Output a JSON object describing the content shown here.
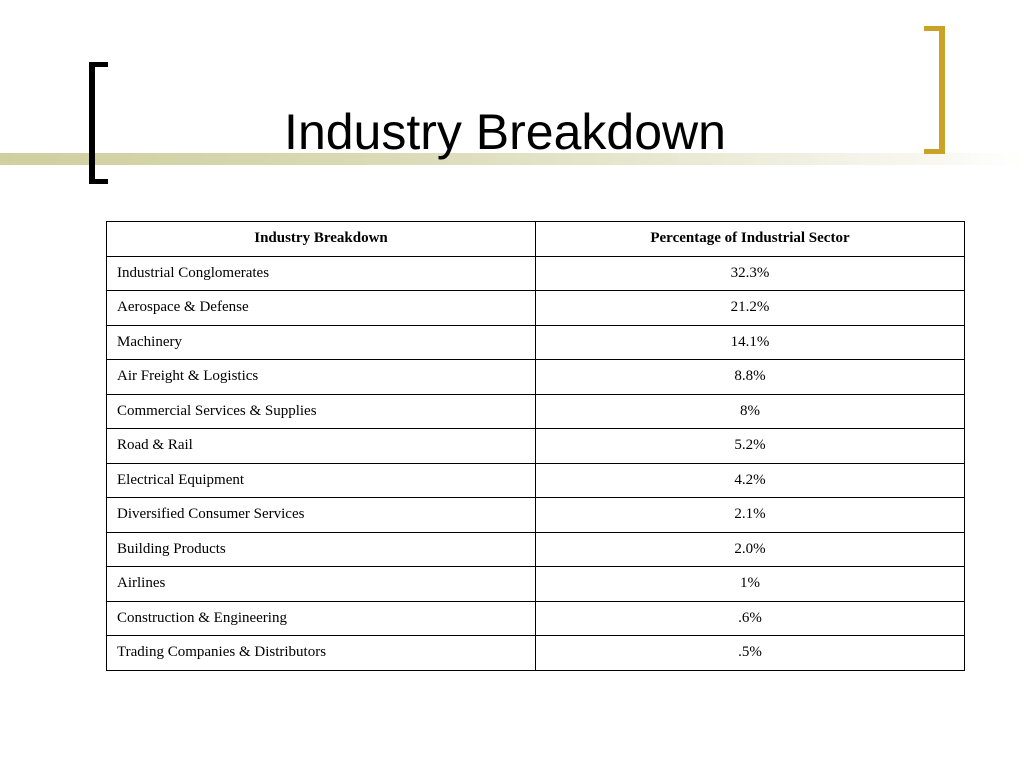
{
  "slide": {
    "title": "Industry Breakdown",
    "accent_colors": {
      "left_bracket": "#000000",
      "right_bracket": "#c9a227",
      "rule_gradient_start": "#cfcf9f"
    }
  },
  "table": {
    "headers": [
      "Industry Breakdown",
      "Percentage of Industrial Sector"
    ],
    "rows": [
      {
        "industry": "Industrial Conglomerates",
        "percentage": "32.3%"
      },
      {
        "industry": "Aerospace & Defense",
        "percentage": "21.2%"
      },
      {
        "industry": "Machinery",
        "percentage": "14.1%"
      },
      {
        "industry": "Air Freight & Logistics",
        "percentage": "8.8%"
      },
      {
        "industry": "Commercial Services & Supplies",
        "percentage": "8%"
      },
      {
        "industry": "Road & Rail",
        "percentage": "5.2%"
      },
      {
        "industry": "Electrical Equipment",
        "percentage": "4.2%"
      },
      {
        "industry": "Diversified Consumer Services",
        "percentage": "2.1%"
      },
      {
        "industry": "Building Products",
        "percentage": "2.0%"
      },
      {
        "industry": "Airlines",
        "percentage": "1%"
      },
      {
        "industry": "Construction & Engineering",
        "percentage": ".6%"
      },
      {
        "industry": "Trading Companies & Distributors",
        "percentage": ".5%"
      }
    ]
  }
}
